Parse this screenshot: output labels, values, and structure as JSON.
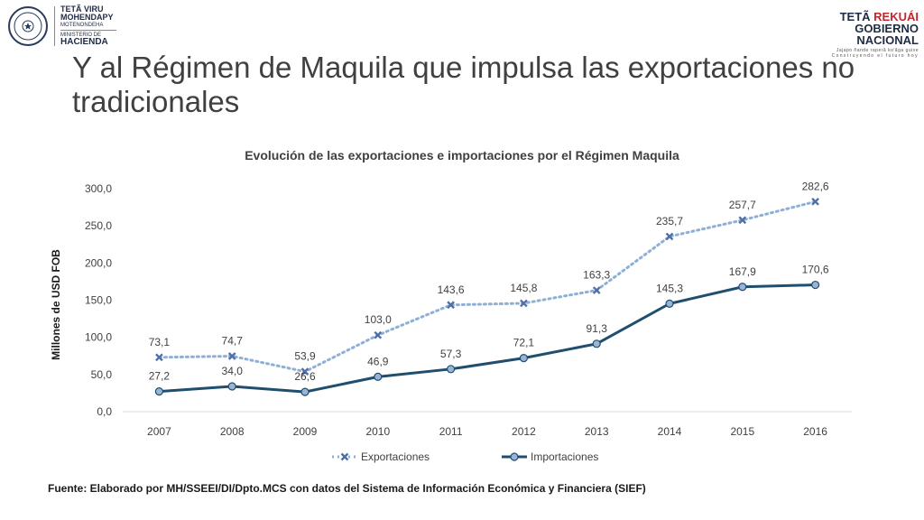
{
  "logos": {
    "left": {
      "line1": "TETÃ VIRU",
      "line2": "MOHENDAPY",
      "line3": "MOTENONDEHA",
      "line4": "MINISTERIO DE",
      "line5": "HACIENDA"
    },
    "right": {
      "line1a": "TETÃ ",
      "line1b": "REKUÁI",
      "line2": "GOBIERNO NACIONAL",
      "line3": "Jajapo ñande raperã ko'ãga guive",
      "line4": "Construyendo el futuro hoy"
    }
  },
  "slide": {
    "title": "Y al Régimen de Maquila que impulsa las exportaciones no tradicionales",
    "footer": "Fuente: Elaborado por MH/SSEEI/DI/Dpto.MCS con datos del Sistema de Información Económica y Financiera (SIEF)"
  },
  "colors": {
    "exportaciones": "#8fb0d6",
    "exportaciones_marker": "#4f6fa8",
    "importaciones": "#1f4e6e",
    "importaciones_marker": "#9bb3d4",
    "axis": "#d9d9d9",
    "text": "#404040"
  },
  "chart_data": {
    "type": "line",
    "title": "Evolución de las exportaciones e importaciones por el Régimen Maquila",
    "xlabel": "",
    "ylabel": "Millones de USD FOB",
    "categories": [
      "2007",
      "2008",
      "2009",
      "2010",
      "2011",
      "2012",
      "2013",
      "2014",
      "2015",
      "2016"
    ],
    "ylim": [
      0,
      300
    ],
    "yticks": [
      "0,0",
      "50,0",
      "100,0",
      "150,0",
      "200,0",
      "250,0",
      "300,0"
    ],
    "series": [
      {
        "name": "Exportaciones",
        "values": [
          73.1,
          74.7,
          53.9,
          103.0,
          143.6,
          145.8,
          163.3,
          235.7,
          257.7,
          282.6
        ],
        "labels": [
          "73,1",
          "74,7",
          "53,9",
          "103,0",
          "143,6",
          "145,8",
          "163,3",
          "235,7",
          "257,7",
          "282,6"
        ]
      },
      {
        "name": "Importaciones",
        "values": [
          27.2,
          34.0,
          26.6,
          46.9,
          57.3,
          72.1,
          91.3,
          145.3,
          167.9,
          170.6
        ],
        "labels": [
          "27,2",
          "34,0",
          "26,6",
          "46,9",
          "57,3",
          "72,1",
          "91,3",
          "145,3",
          "167,9",
          "170,6"
        ]
      }
    ],
    "legend": "bottom"
  }
}
